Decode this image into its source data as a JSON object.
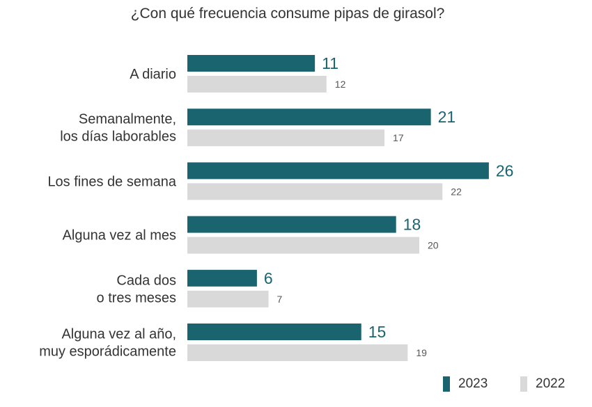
{
  "chart_data": {
    "type": "bar",
    "orientation": "horizontal",
    "title": "¿Con qué frecuencia consume pipas de girasol?",
    "categories": [
      [
        "A diario"
      ],
      [
        "Semanalmente,",
        "los días laborables"
      ],
      [
        "Los fines de semana"
      ],
      [
        "Alguna vez al mes"
      ],
      [
        "Cada dos",
        "o tres meses"
      ],
      [
        "Alguna vez al año,",
        "muy esporádicamente"
      ]
    ],
    "series": [
      {
        "name": "2023",
        "values": [
          11,
          21,
          26,
          18,
          6,
          15
        ],
        "color": "#1a6470"
      },
      {
        "name": "2022",
        "values": [
          12,
          17,
          22,
          20,
          7,
          19
        ],
        "color": "#d9d9d9"
      }
    ],
    "value_label_colors": {
      "2023": "#1a6470",
      "2022": "#555555"
    },
    "xlim": [
      0,
      26
    ],
    "grid": false,
    "legend_position": "bottom-right"
  }
}
